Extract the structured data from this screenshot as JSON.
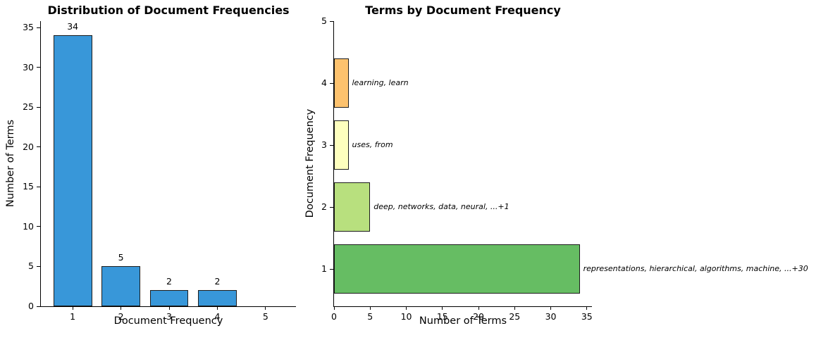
{
  "figure": {
    "background": "#ffffff",
    "text_color": "#000000"
  },
  "chart_data": [
    {
      "type": "bar",
      "orientation": "vertical",
      "title": "Distribution of Document Frequencies",
      "xlabel": "Document Frequency",
      "ylabel": "Number of Terms",
      "categories": [
        1,
        2,
        3,
        4
      ],
      "values": [
        34,
        5,
        2,
        2
      ],
      "bar_labels": [
        "34",
        "5",
        "2",
        "2"
      ],
      "bar_color": "#3897d9",
      "edge_color": "#1c1c1c",
      "bar_width": 0.8,
      "xticks": [
        1,
        2,
        3,
        4,
        5
      ],
      "yticks": [
        0,
        5,
        10,
        15,
        20,
        25,
        30,
        35
      ],
      "xlim": [
        0.34,
        5.63
      ],
      "ylim": [
        0,
        35.8
      ],
      "grid": false,
      "legend": null
    },
    {
      "type": "bar",
      "orientation": "horizontal",
      "title": "Terms by Document Frequency",
      "xlabel": "Number of Terms",
      "ylabel": "Document Frequency",
      "categories": [
        1,
        2,
        3,
        4
      ],
      "values": [
        34,
        5,
        2,
        2
      ],
      "bar_colors": [
        "#66bd63",
        "#b8e07e",
        "#feffbe",
        "#fdc26e"
      ],
      "edge_color": "#1c1c1c",
      "bar_height": 0.8,
      "annotations": [
        "representations, hierarchical, algorithms, machine, ...+30",
        "deep, networks, data, neural, ...+1",
        "uses, from",
        "learning, learn"
      ],
      "xticks": [
        0,
        5,
        10,
        15,
        20,
        25,
        30,
        35
      ],
      "yticks": [
        1,
        2,
        3,
        4,
        5
      ],
      "xlim": [
        0,
        35.7
      ],
      "ylim": [
        0.4,
        5.0
      ],
      "grid": false,
      "legend": null
    }
  ]
}
